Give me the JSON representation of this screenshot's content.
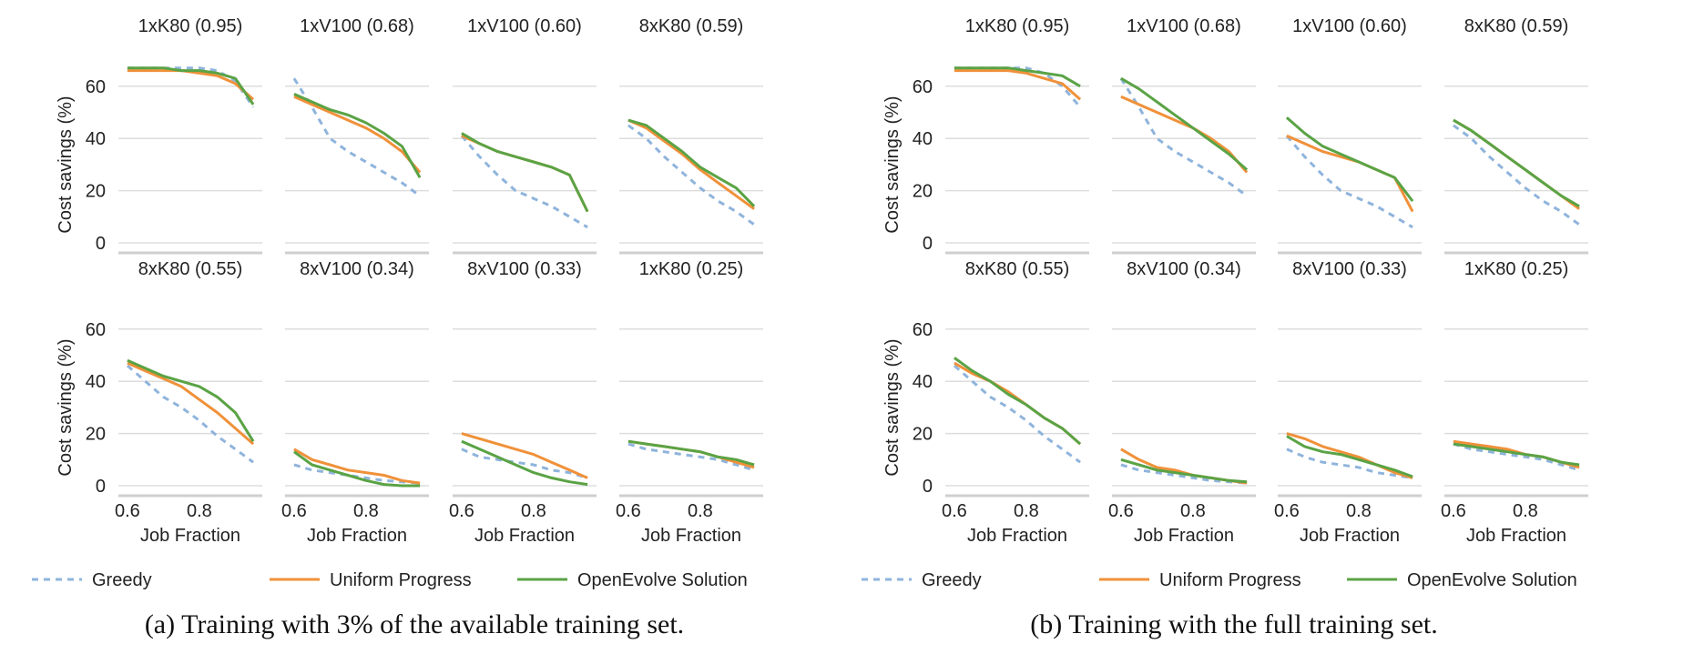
{
  "colors": {
    "Greedy": "#8fb4dc",
    "Uniform Progress": "#f0913a",
    "OpenEvolve Solution": "#5aa345",
    "grid": "#dddddd"
  },
  "captions": {
    "a": "(a) Training with 3% of the available training set.",
    "b": "(b) Training with the full training set."
  },
  "chart_data": [
    {
      "type": "line",
      "caption": "(a) Training with 3% of the available training set.",
      "xlabel": "Job Fraction",
      "ylabel": "Cost savings (%)",
      "x": [
        0.6,
        0.65,
        0.7,
        0.75,
        0.8,
        0.85,
        0.9,
        0.95
      ],
      "xticks": [
        0.6,
        0.8
      ],
      "yticks": [
        0,
        20,
        40,
        60
      ],
      "ylim": [
        -4,
        70
      ],
      "xlim": [
        0.575,
        0.975
      ],
      "grid": true,
      "legend": "bottom",
      "series_names": [
        "Greedy",
        "Uniform Progress",
        "OpenEvolve Solution"
      ],
      "panels": [
        {
          "title": "1xK80 (0.95)",
          "series": [
            [
              67,
              67,
              67,
              67,
              67,
              66,
              62,
              52
            ],
            [
              66,
              66,
              66,
              66,
              65,
              64,
              61,
              55
            ],
            [
              67,
              67,
              67,
              66,
              66,
              65,
              63,
              53
            ]
          ]
        },
        {
          "title": "1xV100 (0.68)",
          "series": [
            [
              63,
              52,
              40,
              35,
              31,
              27,
              23,
              18
            ],
            [
              56,
              53,
              50,
              47,
              44,
              40,
              35,
              27
            ],
            [
              57,
              54,
              51,
              49,
              46,
              42,
              37,
              25
            ]
          ]
        },
        {
          "title": "1xV100 (0.60)",
          "series": [
            [
              41,
              33,
              26,
              20,
              17,
              14,
              10,
              6
            ],
            [
              41,
              38,
              35,
              33,
              31,
              29,
              26,
              12
            ],
            [
              42,
              38,
              35,
              33,
              31,
              29,
              26,
              12
            ]
          ]
        },
        {
          "title": "8xK80 (0.59)",
          "series": [
            [
              45,
              40,
              33,
              27,
              21,
              16,
              12,
              7
            ],
            [
              47,
              44,
              39,
              34,
              28,
              23,
              18,
              13
            ],
            [
              47,
              45,
              40,
              35,
              29,
              25,
              21,
              14
            ]
          ]
        },
        {
          "title": "8xK80 (0.55)",
          "series": [
            [
              46,
              40,
              34,
              30,
              25,
              19,
              14,
              9
            ],
            [
              47,
              44,
              41,
              38,
              33,
              28,
              22,
              16
            ],
            [
              48,
              45,
              42,
              40,
              38,
              34,
              28,
              17
            ]
          ]
        },
        {
          "title": "8xV100 (0.34)",
          "series": [
            [
              8,
              6,
              5,
              4,
              3,
              2,
              1.5,
              1
            ],
            [
              14,
              10,
              8,
              6,
              5,
              4,
              2,
              1
            ],
            [
              13,
              8,
              6,
              4,
              2,
              0.5,
              0,
              0
            ]
          ]
        },
        {
          "title": "8xV100 (0.33)",
          "series": [
            [
              14,
              11,
              10,
              9,
              8,
              6,
              5,
              3
            ],
            [
              20,
              18,
              16,
              14,
              12,
              9,
              6,
              3
            ],
            [
              17,
              14,
              11,
              8,
              5,
              3,
              1.5,
              0.5
            ]
          ]
        },
        {
          "title": "1xK80 (0.25)",
          "series": [
            [
              16,
              14,
              13,
              12,
              11,
              10,
              8,
              6
            ],
            [
              17,
              16,
              15,
              14,
              13,
              11,
              9,
              7
            ],
            [
              17,
              16,
              15,
              14,
              13,
              11,
              10,
              8
            ]
          ]
        }
      ]
    },
    {
      "type": "line",
      "caption": "(b) Training with the full training set.",
      "xlabel": "Job Fraction",
      "ylabel": "Cost savings (%)",
      "x": [
        0.6,
        0.65,
        0.7,
        0.75,
        0.8,
        0.85,
        0.9,
        0.95
      ],
      "xticks": [
        0.6,
        0.8
      ],
      "yticks": [
        0,
        20,
        40,
        60
      ],
      "ylim": [
        -4,
        70
      ],
      "xlim": [
        0.575,
        0.975
      ],
      "grid": true,
      "legend": "bottom",
      "series_names": [
        "Greedy",
        "Uniform Progress",
        "OpenEvolve Solution"
      ],
      "panels": [
        {
          "title": "1xK80 (0.95)",
          "series": [
            [
              67,
              67,
              67,
              67,
              67,
              65,
              60,
              52
            ],
            [
              66,
              66,
              66,
              66,
              65,
              63,
              61,
              55
            ],
            [
              67,
              67,
              67,
              67,
              66,
              65,
              64,
              60
            ]
          ]
        },
        {
          "title": "1xV100 (0.68)",
          "series": [
            [
              63,
              52,
              40,
              35,
              31,
              27,
              23,
              18
            ],
            [
              56,
              53,
              50,
              47,
              44,
              40,
              35,
              27
            ],
            [
              63,
              59,
              54,
              49,
              44,
              39,
              34,
              28
            ]
          ]
        },
        {
          "title": "1xV100 (0.60)",
          "series": [
            [
              41,
              33,
              26,
              20,
              17,
              14,
              10,
              6
            ],
            [
              41,
              38,
              35,
              33,
              31,
              28,
              25,
              12
            ],
            [
              48,
              42,
              37,
              34,
              31,
              28,
              25,
              16
            ]
          ]
        },
        {
          "title": "8xK80 (0.59)",
          "series": [
            [
              45,
              40,
              33,
              27,
              21,
              16,
              12,
              7
            ],
            [
              47,
              43,
              38,
              33,
              28,
              23,
              18,
              13
            ],
            [
              47,
              43,
              38,
              33,
              28,
              23,
              18,
              14
            ]
          ]
        },
        {
          "title": "8xK80 (0.55)",
          "series": [
            [
              46,
              40,
              34,
              30,
              25,
              19,
              14,
              9
            ],
            [
              47,
              43,
              40,
              36,
              31,
              26,
              22,
              16
            ],
            [
              49,
              44,
              40,
              35,
              31,
              26,
              22,
              16
            ]
          ]
        },
        {
          "title": "8xV100 (0.34)",
          "series": [
            [
              8,
              6,
              5,
              4,
              3,
              2,
              1.5,
              1
            ],
            [
              14,
              10,
              7,
              6,
              4,
              3,
              2,
              1
            ],
            [
              10,
              8,
              6,
              5,
              4,
              3,
              2,
              1.5
            ]
          ]
        },
        {
          "title": "8xV100 (0.33)",
          "series": [
            [
              14,
              11,
              9,
              8,
              7,
              5,
              4,
              3
            ],
            [
              20,
              18,
              15,
              13,
              11,
              8,
              5,
              3
            ],
            [
              19,
              15,
              13,
              12,
              10,
              8,
              6,
              3.5
            ]
          ]
        },
        {
          "title": "1xK80 (0.25)",
          "series": [
            [
              16,
              14,
              13,
              12,
              11,
              10,
              8,
              6
            ],
            [
              17,
              16,
              15,
              14,
              12,
              11,
              9,
              7
            ],
            [
              16,
              15,
              14,
              13,
              12,
              11,
              9,
              8
            ]
          ]
        }
      ]
    }
  ]
}
